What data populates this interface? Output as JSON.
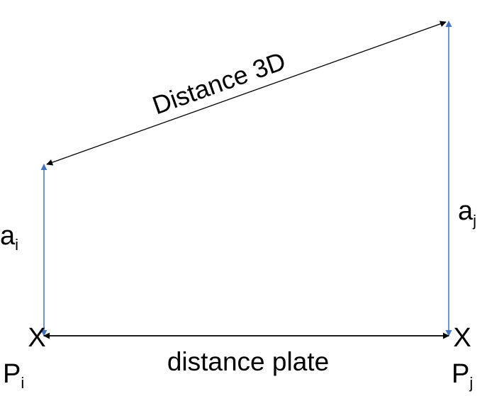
{
  "diagram": {
    "labels": {
      "distance_3d": "Distance 3D",
      "distance_plate": "distance plate",
      "height_left_base": "a",
      "height_left_sub": "i",
      "height_right_base": "a",
      "height_right_sub": "j",
      "point_left_base": "P",
      "point_left_sub": "i",
      "point_right_base": "P",
      "point_right_sub": "j",
      "marker_left": "X",
      "marker_right": "X"
    },
    "colors": {
      "vertical_arrows": "#4472c4",
      "black_arrows": "#000000",
      "text": "#000000"
    }
  }
}
